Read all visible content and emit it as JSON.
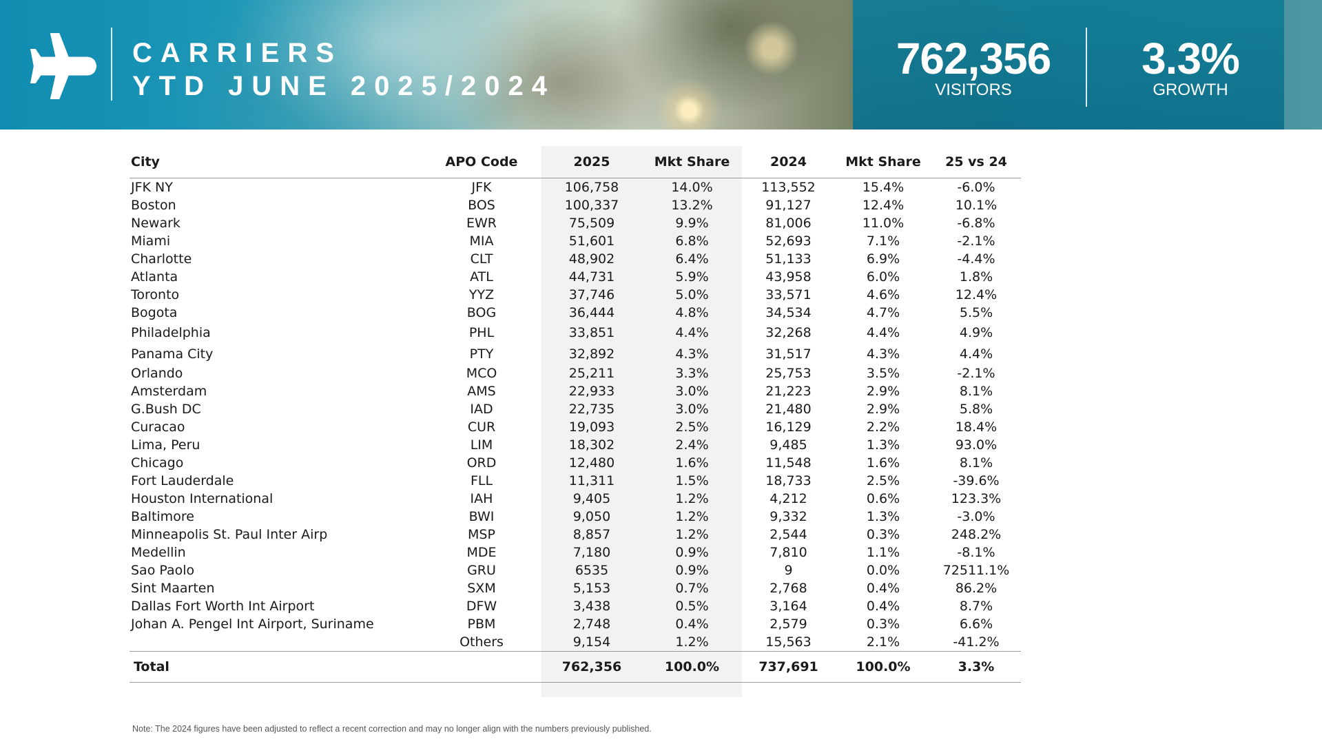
{
  "header": {
    "title_line1": "CARRIERS",
    "title_line2": "YTD JUNE 2025/2024",
    "kpis": [
      {
        "value": "762,356",
        "label": "VISITORS"
      },
      {
        "value": "3.3%",
        "label": "GROWTH"
      }
    ],
    "icon": "airplane-icon",
    "colors": {
      "banner_blue": "#1f93b4",
      "kpi_panel": "#127d96"
    }
  },
  "table": {
    "columns": [
      "City",
      "APO Code",
      "2025",
      "Mkt Share",
      "2024",
      "Mkt Share",
      "25 vs 24"
    ],
    "rows": [
      [
        "JFK NY",
        "JFK",
        "106,758",
        "14.0%",
        "113,552",
        "15.4%",
        "-6.0%"
      ],
      [
        "Boston",
        "BOS",
        "100,337",
        "13.2%",
        "91,127",
        "12.4%",
        "10.1%"
      ],
      [
        "Newark",
        "EWR",
        "75,509",
        "9.9%",
        "81,006",
        "11.0%",
        "-6.8%"
      ],
      [
        "Miami",
        "MIA",
        "51,601",
        "6.8%",
        "52,693",
        "7.1%",
        "-2.1%"
      ],
      [
        "Charlotte",
        "CLT",
        "48,902",
        "6.4%",
        "51,133",
        "6.9%",
        "-4.4%"
      ],
      [
        "Atlanta",
        "ATL",
        "44,731",
        "5.9%",
        "43,958",
        "6.0%",
        "1.8%"
      ],
      [
        "Toronto",
        "YYZ",
        "37,746",
        "5.0%",
        "33,571",
        "4.6%",
        "12.4%"
      ],
      [
        "Bogota",
        "BOG",
        "36,444",
        "4.8%",
        "34,534",
        "4.7%",
        "5.5%"
      ],
      [
        "Philadelphia",
        "PHL",
        "33,851",
        "4.4%",
        "32,268",
        "4.4%",
        "4.9%"
      ],
      [
        "Panama City",
        "PTY",
        "32,892",
        "4.3%",
        "31,517",
        "4.3%",
        "4.4%"
      ],
      [
        "Orlando",
        "MCO",
        "25,211",
        "3.3%",
        "25,753",
        "3.5%",
        "-2.1%"
      ],
      [
        "Amsterdam",
        "AMS",
        "22,933",
        "3.0%",
        "21,223",
        "2.9%",
        "8.1%"
      ],
      [
        "G.Bush DC",
        "IAD",
        "22,735",
        "3.0%",
        "21,480",
        "2.9%",
        "5.8%"
      ],
      [
        "Curacao",
        "CUR",
        "19,093",
        "2.5%",
        "16,129",
        "2.2%",
        "18.4%"
      ],
      [
        "Lima, Peru",
        "LIM",
        "18,302",
        "2.4%",
        "9,485",
        "1.3%",
        "93.0%"
      ],
      [
        "Chicago",
        "ORD",
        "12,480",
        "1.6%",
        "11,548",
        "1.6%",
        "8.1%"
      ],
      [
        "Fort Lauderdale",
        "FLL",
        "11,311",
        "1.5%",
        "18,733",
        "2.5%",
        "-39.6%"
      ],
      [
        "Houston International",
        "IAH",
        "9,405",
        "1.2%",
        "4,212",
        "0.6%",
        "123.3%"
      ],
      [
        "Baltimore",
        "BWI",
        "9,050",
        "1.2%",
        "9,332",
        "1.3%",
        "-3.0%"
      ],
      [
        "Minneapolis St. Paul Inter Airp",
        "MSP",
        "8,857",
        "1.2%",
        "2,544",
        "0.3%",
        "248.2%"
      ],
      [
        "Medellin",
        "MDE",
        "7,180",
        "0.9%",
        "7,810",
        "1.1%",
        "-8.1%"
      ],
      [
        "Sao Paolo",
        "GRU",
        "6535",
        "0.9%",
        "9",
        "0.0%",
        "72511.1%"
      ],
      [
        "Sint Maarten",
        "SXM",
        "5,153",
        "0.7%",
        "2,768",
        "0.4%",
        "86.2%"
      ],
      [
        "Dallas Fort Worth Int Airport",
        "DFW",
        "3,438",
        "0.5%",
        "3,164",
        "0.4%",
        "8.7%"
      ],
      [
        "Johan A. Pengel Int Airport, Suriname",
        "PBM",
        "2,748",
        "0.4%",
        "2,579",
        "0.3%",
        "6.6%"
      ],
      [
        "",
        "Others",
        "9,154",
        "1.2%",
        "15,563",
        "2.1%",
        "-41.2%"
      ]
    ],
    "total": [
      "Total",
      "",
      "762,356",
      "100.0%",
      "737,691",
      "100.0%",
      "3.3%"
    ]
  },
  "note": "Note: The 2024 figures have been adjusted to reflect a recent correction and may no longer align with the numbers previously published."
}
